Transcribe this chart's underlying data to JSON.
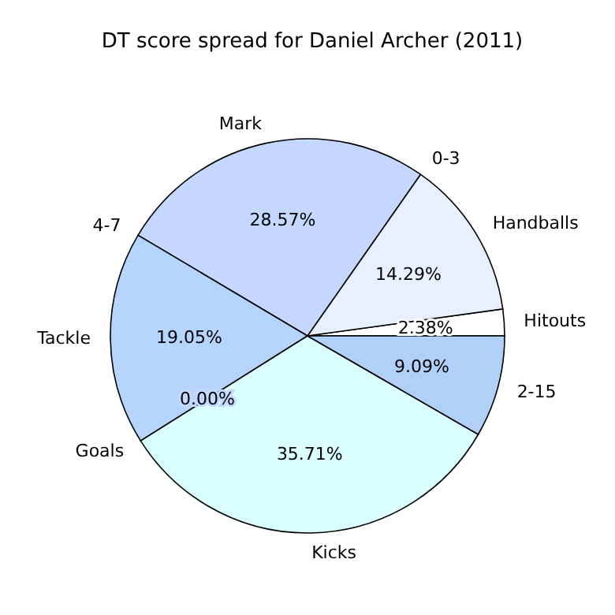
{
  "chart_data": {
    "type": "pie",
    "title": "DT score spread for Daniel Archer (2011)",
    "categories": [
      "Hitouts",
      "Handballs",
      "0-3",
      "Mark",
      "4-7",
      "Tackle",
      "Goals",
      "Kicks",
      "2-15"
    ],
    "values": [
      2.38,
      14.29,
      0,
      28.57,
      0,
      19.05,
      0,
      35.71,
      9.09
    ],
    "value_labels": [
      "2.38%",
      "14.29%",
      null,
      "28.57%",
      null,
      "19.05%",
      "0.00%",
      "35.71%",
      "9.09%"
    ],
    "colors": [
      "#ffffff",
      "#e8f0ff",
      "#e8f0ff",
      "#c4d8ff",
      "#e8f0ff",
      "#b5d5ff",
      "#c4d8ff",
      "#d9ffff",
      "#b0d0f8"
    ],
    "legend": false
  }
}
